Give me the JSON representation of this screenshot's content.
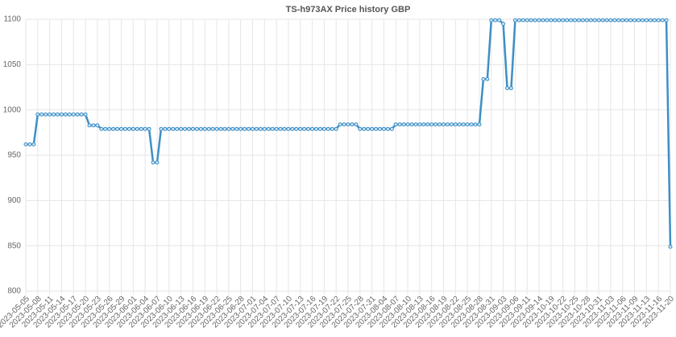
{
  "chart_data": {
    "type": "line",
    "title": "TS-h973AX Price history GBP",
    "categories": [
      "2023-05-05",
      null,
      null,
      "2023-05-08",
      null,
      null,
      "2023-05-11",
      null,
      null,
      "2023-05-14",
      null,
      null,
      "2023-05-17",
      null,
      null,
      "2023-05-20",
      null,
      null,
      "2023-05-23",
      null,
      null,
      "2023-05-26",
      null,
      null,
      "2023-05-29",
      null,
      null,
      "2023-06-01",
      null,
      null,
      "2023-06-04",
      null,
      null,
      "2023-06-07",
      null,
      null,
      "2023-06-10",
      null,
      null,
      "2023-06-13",
      null,
      null,
      "2023-06-16",
      null,
      null,
      "2023-06-19",
      null,
      null,
      "2023-06-22",
      null,
      null,
      "2023-06-25",
      null,
      null,
      "2023-06-28",
      null,
      null,
      "2023-07-01",
      null,
      null,
      "2023-07-04",
      null,
      null,
      "2023-07-07",
      null,
      null,
      "2023-07-10",
      null,
      null,
      "2023-07-13",
      null,
      null,
      "2023-07-16",
      null,
      null,
      "2023-07-19",
      null,
      null,
      "2023-07-22",
      null,
      null,
      "2023-07-25",
      null,
      null,
      "2023-07-28",
      null,
      null,
      "2023-07-31",
      null,
      null,
      "2023-08-04",
      null,
      null,
      "2023-08-07",
      null,
      null,
      "2023-08-10",
      null,
      null,
      "2023-08-13",
      null,
      null,
      "2023-08-16",
      null,
      null,
      "2023-08-19",
      null,
      null,
      "2023-08-22",
      null,
      null,
      "2023-08-25",
      null,
      null,
      "2023-08-28",
      null,
      null,
      "2023-08-31",
      null,
      null,
      "2023-09-03",
      null,
      null,
      "2023-09-06",
      null,
      null,
      "2023-09-11",
      null,
      null,
      "2023-09-14",
      null,
      null,
      "2023-10-19",
      null,
      null,
      "2023-10-22",
      null,
      null,
      "2023-10-25",
      null,
      null,
      "2023-10-28",
      null,
      null,
      "2023-10-31",
      null,
      null,
      "2023-11-03",
      null,
      null,
      "2023-11-06",
      null,
      null,
      "2023-11-09",
      null,
      null,
      "2023-11-13",
      null,
      null,
      "2023-11-16",
      null,
      null,
      "2023-11-20"
    ],
    "values": [
      962,
      962,
      962,
      995,
      995,
      995,
      995,
      995,
      995,
      995,
      995,
      995,
      995,
      995,
      995,
      995,
      983,
      983,
      983,
      979,
      979,
      979,
      979,
      979,
      979,
      979,
      979,
      979,
      979,
      979,
      979,
      979,
      942,
      942,
      979,
      979,
      979,
      979,
      979,
      979,
      979,
      979,
      979,
      979,
      979,
      979,
      979,
      979,
      979,
      979,
      979,
      979,
      979,
      979,
      979,
      979,
      979,
      979,
      979,
      979,
      979,
      979,
      979,
      979,
      979,
      979,
      979,
      979,
      979,
      979,
      979,
      979,
      979,
      979,
      979,
      979,
      979,
      979,
      979,
      984,
      984,
      984,
      984,
      984,
      979,
      979,
      979,
      979,
      979,
      979,
      979,
      979,
      979,
      984,
      984,
      984,
      984,
      984,
      984,
      984,
      984,
      984,
      984,
      984,
      984,
      984,
      984,
      984,
      984,
      984,
      984,
      984,
      984,
      984,
      984,
      1034,
      1034,
      1099,
      1099,
      1099,
      1095,
      1024,
      1024,
      1099,
      1099,
      1099,
      1099,
      1099,
      1099,
      1099,
      1099,
      1099,
      1099,
      1099,
      1099,
      1099,
      1099,
      1099,
      1099,
      1099,
      1099,
      1099,
      1099,
      1099,
      1099,
      1099,
      1099,
      1099,
      1099,
      1099,
      1099,
      1099,
      1099,
      1099,
      1099,
      1099,
      1099,
      1099,
      1099,
      1099,
      1099,
      1099,
      849
    ],
    "color": "#3e8fc6",
    "ylim": [
      800,
      1100
    ],
    "yticks": [
      800,
      850,
      900,
      950,
      1000,
      1050,
      1100
    ],
    "grid": true
  }
}
